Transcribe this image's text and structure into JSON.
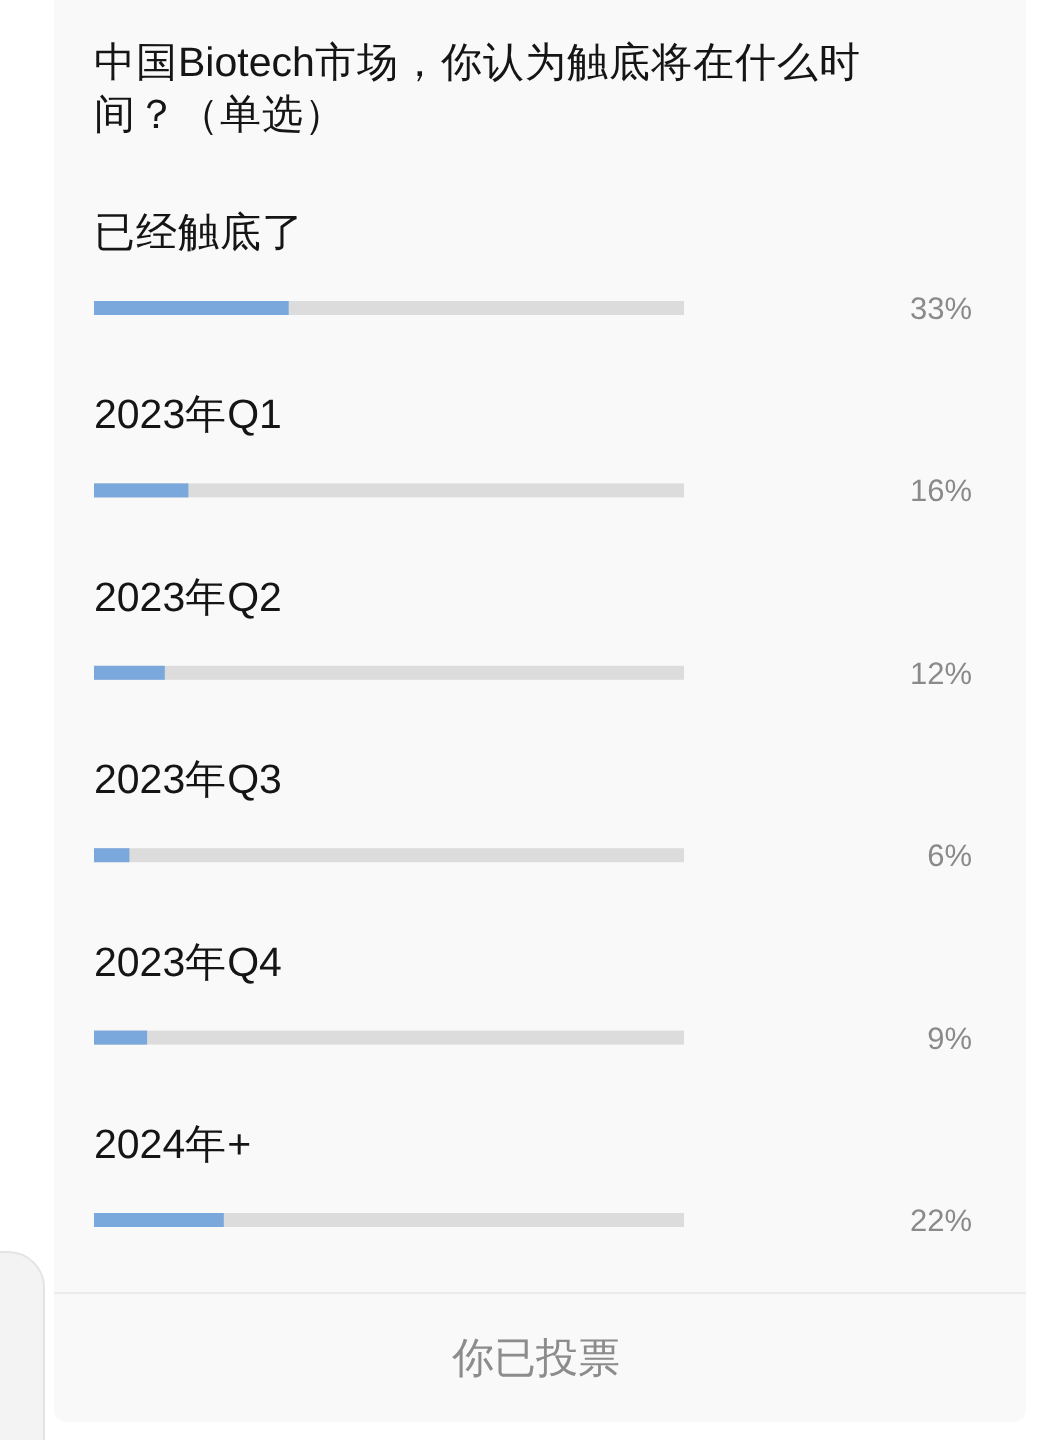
{
  "chart_data": {
    "type": "bar",
    "orientation": "horizontal",
    "title": "中国Biotech市场，你认为触底将在什么时间？（单选）",
    "categories": [
      "已经触底了",
      "2023年Q1",
      "2023年Q2",
      "2023年Q3",
      "2023年Q4",
      "2024年+"
    ],
    "values": [
      33,
      16,
      12,
      6,
      9,
      22
    ],
    "value_labels": [
      "33%",
      "16%",
      "12%",
      "6%",
      "9%",
      "22%"
    ],
    "color": "#7ba8dc",
    "xlim": [
      0,
      100
    ],
    "tick_labels": "y",
    "annotations": [
      "你已投票"
    ]
  }
}
